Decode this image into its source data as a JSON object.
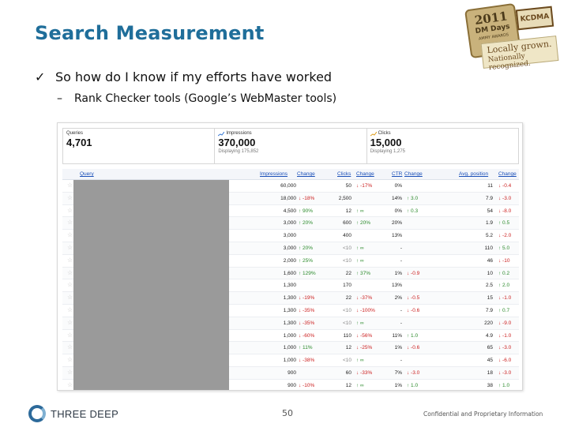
{
  "slide": {
    "title": "Search Measurement",
    "bullet": "So how do I know if my efforts have worked",
    "bullet_marker": "✓",
    "subbullet": "Rank Checker tools (Google’s WebMaster tools)",
    "subbullet_marker": "–"
  },
  "badge": {
    "year": "2011",
    "event": "DM Days",
    "award": "AMMY AWARDS",
    "org": "KCDMA",
    "tagline_1": "Locally grown.",
    "tagline_2": "Nationally recognized."
  },
  "webmaster": {
    "summary": [
      {
        "label": "Queries",
        "value": "4,701",
        "sub": ""
      },
      {
        "label": "Impressions",
        "value": "370,000",
        "sub": "Displaying 175,852"
      },
      {
        "label": "Clicks",
        "value": "15,000",
        "sub": "Displaying 1,275"
      }
    ],
    "columns": {
      "query": "Query",
      "impressions": "Impressions",
      "imp_change": "Change",
      "clicks": "Clicks",
      "clk_change": "Change",
      "ctr": "CTR",
      "ctr_change": "Change",
      "avg_position": "Avg. position",
      "pos_change": "Change"
    },
    "rows": [
      {
        "impressions": "60,000",
        "imp_change": "",
        "imp_dir": "",
        "clicks": "50",
        "clk_change": "-17%",
        "clk_dir": "down",
        "ctr": "0%",
        "ctr_change": "",
        "ctr_dir": "",
        "pos": "11",
        "pos_change": "-0.4",
        "pos_dir": "down"
      },
      {
        "impressions": "18,000",
        "imp_change": "-18%",
        "imp_dir": "down",
        "clicks": "2,500",
        "clk_change": "",
        "clk_dir": "",
        "ctr": "14%",
        "ctr_change": "3.0",
        "ctr_dir": "up",
        "pos": "7.9",
        "pos_change": "-3.0",
        "pos_dir": "down"
      },
      {
        "impressions": "4,500",
        "imp_change": "90%",
        "imp_dir": "up",
        "clicks": "12",
        "clk_change": "∞",
        "clk_dir": "up",
        "ctr": "0%",
        "ctr_change": "0.3",
        "ctr_dir": "up",
        "pos": "54",
        "pos_change": "-8.0",
        "pos_dir": "down"
      },
      {
        "impressions": "3,000",
        "imp_change": "20%",
        "imp_dir": "up",
        "clicks": "600",
        "clk_change": "20%",
        "clk_dir": "up",
        "ctr": "20%",
        "ctr_change": "",
        "ctr_dir": "",
        "pos": "1.9",
        "pos_change": "0.5",
        "pos_dir": "up"
      },
      {
        "impressions": "3,000",
        "imp_change": "",
        "imp_dir": "",
        "clicks": "400",
        "clk_change": "",
        "clk_dir": "",
        "ctr": "13%",
        "ctr_change": "",
        "ctr_dir": "",
        "pos": "5.2",
        "pos_change": "-2.0",
        "pos_dir": "down"
      },
      {
        "impressions": "3,000",
        "imp_change": "20%",
        "imp_dir": "up",
        "clicks": "<10",
        "clk_change": "∞",
        "clk_dir": "up",
        "ctr": "-",
        "ctr_change": "",
        "ctr_dir": "",
        "pos": "110",
        "pos_change": "5.0",
        "pos_dir": "up"
      },
      {
        "impressions": "2,000",
        "imp_change": "25%",
        "imp_dir": "up",
        "clicks": "<10",
        "clk_change": "∞",
        "clk_dir": "up",
        "ctr": "-",
        "ctr_change": "",
        "ctr_dir": "",
        "pos": "46",
        "pos_change": "-10",
        "pos_dir": "down"
      },
      {
        "impressions": "1,600",
        "imp_change": "129%",
        "imp_dir": "up",
        "clicks": "22",
        "clk_change": "37%",
        "clk_dir": "up",
        "ctr": "1%",
        "ctr_change": "-0.9",
        "ctr_dir": "down",
        "pos": "10",
        "pos_change": "0.2",
        "pos_dir": "up"
      },
      {
        "impressions": "1,300",
        "imp_change": "",
        "imp_dir": "",
        "clicks": "170",
        "clk_change": "",
        "clk_dir": "",
        "ctr": "13%",
        "ctr_change": "",
        "ctr_dir": "",
        "pos": "2.5",
        "pos_change": "2.0",
        "pos_dir": "up"
      },
      {
        "impressions": "1,300",
        "imp_change": "-19%",
        "imp_dir": "down",
        "clicks": "22",
        "clk_change": "-37%",
        "clk_dir": "down",
        "ctr": "2%",
        "ctr_change": "-0.5",
        "ctr_dir": "down",
        "pos": "15",
        "pos_change": "-1.0",
        "pos_dir": "down"
      },
      {
        "impressions": "1,300",
        "imp_change": "-35%",
        "imp_dir": "down",
        "clicks": "<10",
        "clk_change": "-100%",
        "clk_dir": "down",
        "ctr": "-",
        "ctr_change": "-0.6",
        "ctr_dir": "down",
        "pos": "7.9",
        "pos_change": "0.7",
        "pos_dir": "up"
      },
      {
        "impressions": "1,300",
        "imp_change": "-35%",
        "imp_dir": "down",
        "clicks": "<10",
        "clk_change": "∞",
        "clk_dir": "up",
        "ctr": "-",
        "ctr_change": "",
        "ctr_dir": "",
        "pos": "220",
        "pos_change": "-9.0",
        "pos_dir": "down"
      },
      {
        "impressions": "1,000",
        "imp_change": "-60%",
        "imp_dir": "down",
        "clicks": "110",
        "clk_change": "-56%",
        "clk_dir": "down",
        "ctr": "11%",
        "ctr_change": "1.0",
        "ctr_dir": "up",
        "pos": "4.9",
        "pos_change": "-1.0",
        "pos_dir": "down"
      },
      {
        "impressions": "1,000",
        "imp_change": "11%",
        "imp_dir": "up",
        "clicks": "12",
        "clk_change": "-25%",
        "clk_dir": "down",
        "ctr": "1%",
        "ctr_change": "-0.6",
        "ctr_dir": "down",
        "pos": "65",
        "pos_change": "-3.0",
        "pos_dir": "down"
      },
      {
        "impressions": "1,000",
        "imp_change": "-38%",
        "imp_dir": "down",
        "clicks": "<10",
        "clk_change": "∞",
        "clk_dir": "up",
        "ctr": "-",
        "ctr_change": "",
        "ctr_dir": "",
        "pos": "45",
        "pos_change": "-6.0",
        "pos_dir": "down"
      },
      {
        "impressions": "900",
        "imp_change": "",
        "imp_dir": "",
        "clicks": "60",
        "clk_change": "-33%",
        "clk_dir": "down",
        "ctr": "7%",
        "ctr_change": "-3.0",
        "ctr_dir": "down",
        "pos": "18",
        "pos_change": "-3.0",
        "pos_dir": "down"
      },
      {
        "impressions": "900",
        "imp_change": "-10%",
        "imp_dir": "down",
        "clicks": "12",
        "clk_change": "∞",
        "clk_dir": "up",
        "ctr": "1%",
        "ctr_change": "1.0",
        "ctr_dir": "up",
        "pos": "38",
        "pos_change": "1.0",
        "pos_dir": "up"
      }
    ]
  },
  "footer": {
    "brand": "THREE DEEP",
    "page_number": "50",
    "confidential": "Confidential and Proprietary Information"
  },
  "colors": {
    "title": "#1f6e9a",
    "link": "#1a4fb8",
    "up": "#2b8a2b",
    "down": "#cc2020",
    "redacted": "#9a9a9a"
  },
  "icons": {
    "up": "arrow-up-icon",
    "down": "arrow-down-icon",
    "star": "star-icon"
  }
}
